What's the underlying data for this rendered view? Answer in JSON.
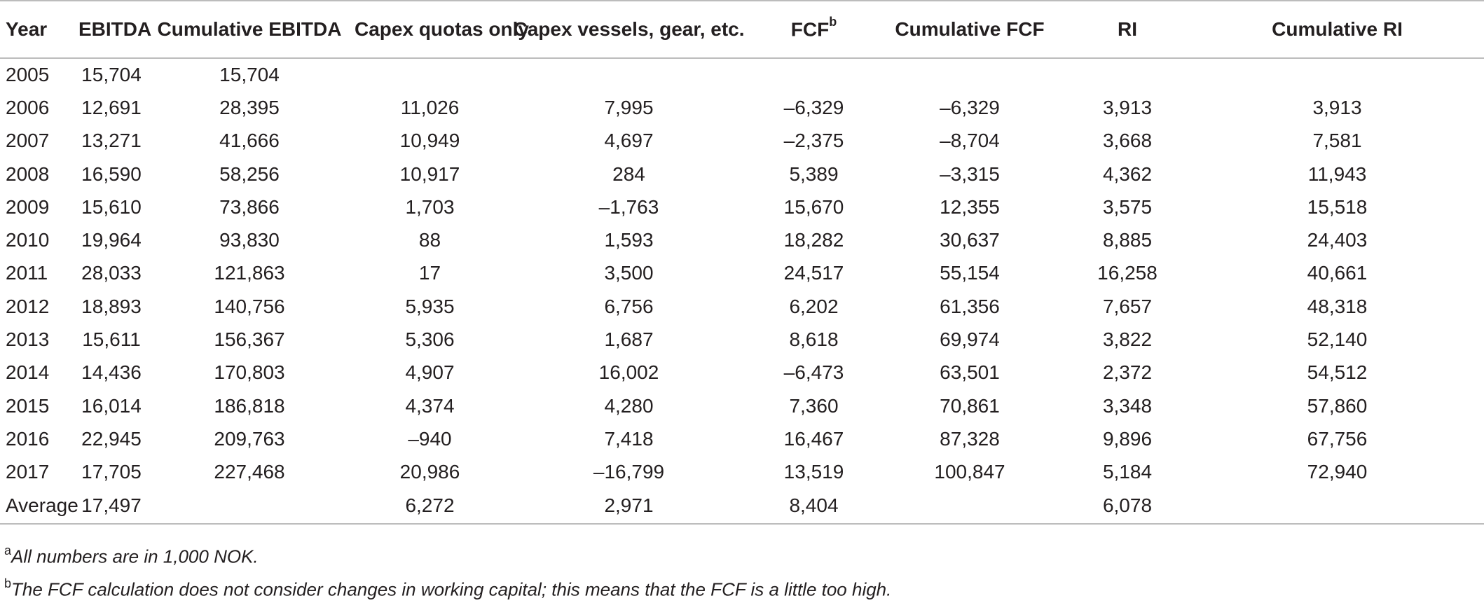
{
  "table": {
    "headers": [
      {
        "label": "Year"
      },
      {
        "label": "EBITDA"
      },
      {
        "label": "Cumulative EBITDA"
      },
      {
        "label": "Capex quotas only"
      },
      {
        "label": "Capex vessels, gear, etc."
      },
      {
        "label": "FCF",
        "sup": "b"
      },
      {
        "label": "Cumulative FCF"
      },
      {
        "label": "RI"
      },
      {
        "label": "Cumulative RI"
      }
    ],
    "rows": [
      [
        "2005",
        "15,704",
        "15,704",
        "",
        "",
        "",
        "",
        "",
        ""
      ],
      [
        "2006",
        "12,691",
        "28,395",
        "11,026",
        "7,995",
        "–6,329",
        "–6,329",
        "3,913",
        "3,913"
      ],
      [
        "2007",
        "13,271",
        "41,666",
        "10,949",
        "4,697",
        "–2,375",
        "–8,704",
        "3,668",
        "7,581"
      ],
      [
        "2008",
        "16,590",
        "58,256",
        "10,917",
        "284",
        "5,389",
        "–3,315",
        "4,362",
        "11,943"
      ],
      [
        "2009",
        "15,610",
        "73,866",
        "1,703",
        "–1,763",
        "15,670",
        "12,355",
        "3,575",
        "15,518"
      ],
      [
        "2010",
        "19,964",
        "93,830",
        "88",
        "1,593",
        "18,282",
        "30,637",
        "8,885",
        "24,403"
      ],
      [
        "2011",
        "28,033",
        "121,863",
        "17",
        "3,500",
        "24,517",
        "55,154",
        "16,258",
        "40,661"
      ],
      [
        "2012",
        "18,893",
        "140,756",
        "5,935",
        "6,756",
        "6,202",
        "61,356",
        "7,657",
        "48,318"
      ],
      [
        "2013",
        "15,611",
        "156,367",
        "5,306",
        "1,687",
        "8,618",
        "69,974",
        "3,822",
        "52,140"
      ],
      [
        "2014",
        "14,436",
        "170,803",
        "4,907",
        "16,002",
        "–6,473",
        "63,501",
        "2,372",
        "54,512"
      ],
      [
        "2015",
        "16,014",
        "186,818",
        "4,374",
        "4,280",
        "7,360",
        "70,861",
        "3,348",
        "57,860"
      ],
      [
        "2016",
        "22,945",
        "209,763",
        "–940",
        "7,418",
        "16,467",
        "87,328",
        "9,896",
        "67,756"
      ],
      [
        "2017",
        "17,705",
        "227,468",
        "20,986",
        "–16,799",
        "13,519",
        "100,847",
        "5,184",
        "72,940"
      ]
    ],
    "average_row": [
      "Average",
      "17,497",
      "",
      "6,272",
      "2,971",
      "8,404",
      "",
      "6,078",
      ""
    ]
  },
  "footnotes": [
    {
      "mark": "a",
      "text": "All numbers are in 1,000 NOK."
    },
    {
      "mark": "b",
      "text": "The FCF calculation does not consider changes in working capital; this means that the FCF is a little too high."
    }
  ]
}
